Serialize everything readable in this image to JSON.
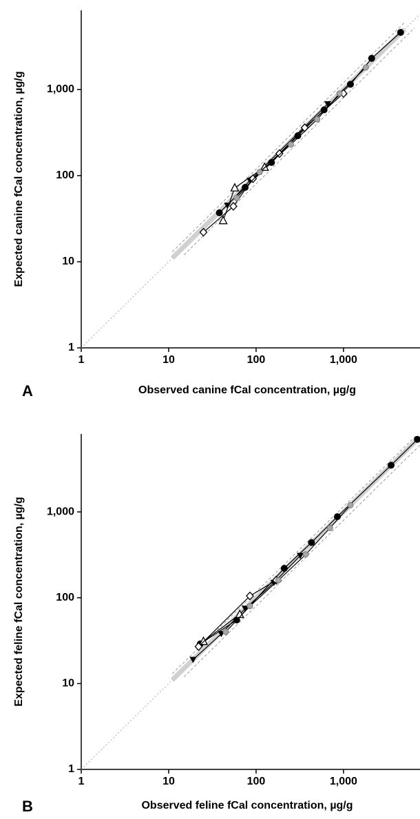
{
  "chart_data": [
    {
      "type": "line",
      "panel_label": "A",
      "log_x": true,
      "log_y": true,
      "identity_line": true,
      "xlabel": "Observed canine fCal concentration, µg/g",
      "ylabel": "Expected canine fCal concentration, µg/g",
      "xlim": [
        1,
        7500
      ],
      "ylim": [
        1,
        8300
      ],
      "xticks": [
        1,
        10,
        100,
        {
          "value": 1000,
          "label": "1,000"
        }
      ],
      "yticks": [
        1,
        10,
        100,
        {
          "value": 1000,
          "label": "1,000"
        }
      ],
      "series": [
        {
          "style": "band",
          "color": "#d0d0d0",
          "x": [
            11,
            5000
          ],
          "values": [
            11,
            5000
          ]
        },
        {
          "style": "dashed",
          "color": "#999999",
          "x": [
            15,
            6500
          ],
          "values": [
            12,
            5200
          ]
        },
        {
          "style": "dashed",
          "color": "#999999",
          "x": [
            11,
            5000
          ],
          "values": [
            13,
            6000
          ]
        },
        {
          "marker": "circle",
          "color": "#000000",
          "x": [
            38,
            75,
            150,
            300,
            600,
            1200,
            2100,
            4500
          ],
          "values": [
            37,
            73,
            142,
            290,
            580,
            1150,
            2300,
            4600
          ]
        },
        {
          "marker": "triangle-down",
          "color": "#000000",
          "x": [
            47,
            85,
            660
          ],
          "values": [
            45,
            88,
            680
          ]
        },
        {
          "marker": "triangle-up-open",
          "color": "#000000",
          "x": [
            42,
            57,
            125
          ],
          "values": [
            30,
            72,
            125
          ]
        },
        {
          "marker": "diamond-open",
          "color": "#000000",
          "x": [
            25,
            55,
            92,
            185,
            360,
            1000
          ],
          "values": [
            22,
            44,
            92,
            180,
            360,
            900
          ]
        },
        {
          "marker": "circle-gray",
          "color": "#a8a8a8",
          "x": [
            60,
            110,
            250,
            500,
            900,
            1800
          ],
          "values": [
            55,
            110,
            230,
            450,
            900,
            1800
          ]
        }
      ]
    },
    {
      "type": "line",
      "panel_label": "B",
      "log_x": true,
      "log_y": true,
      "identity_line": true,
      "xlabel": "Observed feline fCal concentration, µg/g",
      "ylabel": "Expected feline fCal concentration, µg/g",
      "xlim": [
        1,
        7500
      ],
      "ylim": [
        1,
        8100
      ],
      "xticks": [
        1,
        10,
        100,
        {
          "value": 1000,
          "label": "1,000"
        }
      ],
      "yticks": [
        1,
        10,
        100,
        {
          "value": 1000,
          "label": "1,000"
        }
      ],
      "series": [
        {
          "style": "band",
          "color": "#d0d0d0",
          "x": [
            11,
            7000
          ],
          "values": [
            11,
            7000
          ]
        },
        {
          "style": "dashed",
          "color": "#999999",
          "x": [
            15,
            7500
          ],
          "values": [
            12,
            6000
          ]
        },
        {
          "style": "dashed",
          "color": "#999999",
          "x": [
            11,
            7000
          ],
          "values": [
            13,
            8000
          ]
        },
        {
          "marker": "circle",
          "color": "#000000",
          "x": [
            23,
            60,
            210,
            430,
            850,
            3500,
            7000
          ],
          "values": [
            29,
            55,
            220,
            440,
            880,
            3500,
            7000
          ]
        },
        {
          "marker": "triangle-down",
          "color": "#000000",
          "x": [
            19,
            40,
            75,
            160,
            320
          ],
          "values": [
            19,
            38,
            75,
            150,
            310
          ]
        },
        {
          "marker": "triangle-up-open",
          "color": "#000000",
          "x": [
            25,
            65
          ],
          "values": [
            31,
            64
          ]
        },
        {
          "marker": "diamond-open",
          "color": "#000000",
          "x": [
            22,
            85,
            170
          ],
          "values": [
            27,
            105,
            160
          ]
        },
        {
          "marker": "circle-gray",
          "color": "#a8a8a8",
          "x": [
            45,
            85,
            180,
            370,
            700,
            1200
          ],
          "values": [
            40,
            80,
            160,
            320,
            650,
            1200
          ]
        }
      ]
    }
  ]
}
